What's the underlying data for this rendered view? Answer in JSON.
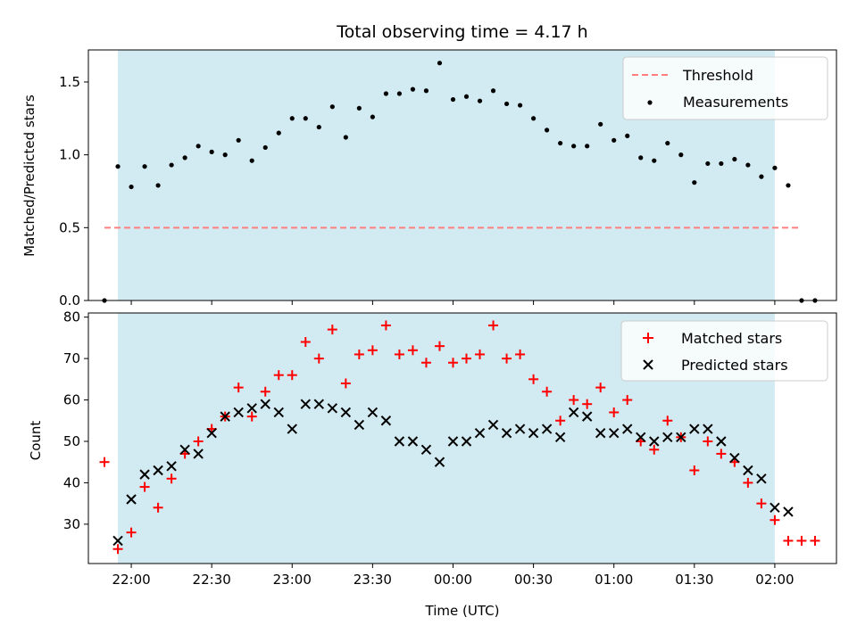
{
  "chart_data": [
    {
      "type": "scatter",
      "title": "Total observing time = 4.17 h",
      "ylabel": "Matched/Predicted stars",
      "xlabel": "",
      "ylim": [
        0,
        1.72
      ],
      "yticks": [
        "0.0",
        "0.5",
        "1.0",
        "1.5"
      ],
      "observing_window": [
        "21:55",
        "02:00"
      ],
      "legend_position": "top-right",
      "threshold": {
        "name": "Threshold",
        "value": 0.5,
        "x_range": [
          "21:50",
          "02:10"
        ],
        "color": "#ff7f7f"
      },
      "series": [
        {
          "name": "Measurements",
          "color": "#000000",
          "points": [
            [
              "21:50",
              0.0
            ],
            [
              "21:55",
              0.92
            ],
            [
              "22:00",
              0.78
            ],
            [
              "22:05",
              0.92
            ],
            [
              "22:10",
              0.79
            ],
            [
              "22:15",
              0.93
            ],
            [
              "22:20",
              0.98
            ],
            [
              "22:25",
              1.06
            ],
            [
              "22:30",
              1.02
            ],
            [
              "22:35",
              1.0
            ],
            [
              "22:40",
              1.1
            ],
            [
              "22:45",
              0.96
            ],
            [
              "22:50",
              1.05
            ],
            [
              "22:55",
              1.15
            ],
            [
              "23:00",
              1.25
            ],
            [
              "23:05",
              1.25
            ],
            [
              "23:10",
              1.19
            ],
            [
              "23:15",
              1.33
            ],
            [
              "23:20",
              1.12
            ],
            [
              "23:25",
              1.32
            ],
            [
              "23:30",
              1.26
            ],
            [
              "23:35",
              1.42
            ],
            [
              "23:40",
              1.42
            ],
            [
              "23:45",
              1.45
            ],
            [
              "23:50",
              1.44
            ],
            [
              "23:55",
              1.63
            ],
            [
              "00:00",
              1.38
            ],
            [
              "00:05",
              1.4
            ],
            [
              "00:10",
              1.37
            ],
            [
              "00:15",
              1.44
            ],
            [
              "00:20",
              1.35
            ],
            [
              "00:25",
              1.34
            ],
            [
              "00:30",
              1.25
            ],
            [
              "00:35",
              1.17
            ],
            [
              "00:40",
              1.08
            ],
            [
              "00:45",
              1.06
            ],
            [
              "00:50",
              1.06
            ],
            [
              "00:55",
              1.21
            ],
            [
              "01:00",
              1.1
            ],
            [
              "01:05",
              1.13
            ],
            [
              "01:10",
              0.98
            ],
            [
              "01:15",
              0.96
            ],
            [
              "01:20",
              1.08
            ],
            [
              "01:25",
              1.0
            ],
            [
              "01:30",
              0.81
            ],
            [
              "01:35",
              0.94
            ],
            [
              "01:40",
              0.94
            ],
            [
              "01:45",
              0.97
            ],
            [
              "01:50",
              0.93
            ],
            [
              "01:55",
              0.85
            ],
            [
              "02:00",
              0.91
            ],
            [
              "02:05",
              0.79
            ],
            [
              "02:10",
              0.0
            ],
            [
              "02:15",
              0.0
            ]
          ]
        }
      ]
    },
    {
      "type": "scatter",
      "title": "",
      "ylabel": "Count",
      "xlabel": "Time (UTC)",
      "ylim": [
        20.5,
        81
      ],
      "yticks": [
        "30",
        "40",
        "50",
        "60",
        "70",
        "80"
      ],
      "xticks": [
        "22:00",
        "22:30",
        "23:00",
        "23:30",
        "00:00",
        "00:30",
        "01:00",
        "01:30",
        "02:00"
      ],
      "observing_window": [
        "21:55",
        "02:00"
      ],
      "legend_position": "top-right",
      "series": [
        {
          "name": "Matched stars",
          "marker": "plus",
          "color": "#ff0000",
          "points": [
            [
              "21:50",
              45
            ],
            [
              "21:55",
              24
            ],
            [
              "22:00",
              28
            ],
            [
              "22:05",
              39
            ],
            [
              "22:10",
              34
            ],
            [
              "22:15",
              41
            ],
            [
              "22:20",
              47
            ],
            [
              "22:25",
              50
            ],
            [
              "22:30",
              53
            ],
            [
              "22:35",
              56
            ],
            [
              "22:40",
              63
            ],
            [
              "22:45",
              56
            ],
            [
              "22:50",
              62
            ],
            [
              "22:55",
              66
            ],
            [
              "23:00",
              66
            ],
            [
              "23:05",
              74
            ],
            [
              "23:10",
              70
            ],
            [
              "23:15",
              77
            ],
            [
              "23:20",
              64
            ],
            [
              "23:25",
              71
            ],
            [
              "23:30",
              72
            ],
            [
              "23:35",
              78
            ],
            [
              "23:40",
              71
            ],
            [
              "23:45",
              72
            ],
            [
              "23:50",
              69
            ],
            [
              "23:55",
              73
            ],
            [
              "00:00",
              69
            ],
            [
              "00:05",
              70
            ],
            [
              "00:10",
              71
            ],
            [
              "00:15",
              78
            ],
            [
              "00:20",
              70
            ],
            [
              "00:25",
              71
            ],
            [
              "00:30",
              65
            ],
            [
              "00:35",
              62
            ],
            [
              "00:40",
              55
            ],
            [
              "00:45",
              60
            ],
            [
              "00:50",
              59
            ],
            [
              "00:55",
              63
            ],
            [
              "01:00",
              57
            ],
            [
              "01:05",
              60
            ],
            [
              "01:10",
              50
            ],
            [
              "01:15",
              48
            ],
            [
              "01:20",
              55
            ],
            [
              "01:25",
              51
            ],
            [
              "01:30",
              43
            ],
            [
              "01:35",
              50
            ],
            [
              "01:40",
              47
            ],
            [
              "01:45",
              45
            ],
            [
              "01:50",
              40
            ],
            [
              "01:55",
              35
            ],
            [
              "02:00",
              31
            ],
            [
              "02:05",
              26
            ],
            [
              "02:10",
              26
            ],
            [
              "02:15",
              26
            ]
          ]
        },
        {
          "name": "Predicted stars",
          "marker": "x",
          "color": "#000000",
          "points": [
            [
              "21:55",
              26
            ],
            [
              "22:00",
              36
            ],
            [
              "22:05",
              42
            ],
            [
              "22:10",
              43
            ],
            [
              "22:15",
              44
            ],
            [
              "22:20",
              48
            ],
            [
              "22:25",
              47
            ],
            [
              "22:30",
              52
            ],
            [
              "22:35",
              56
            ],
            [
              "22:40",
              57
            ],
            [
              "22:45",
              58
            ],
            [
              "22:50",
              59
            ],
            [
              "22:55",
              57
            ],
            [
              "23:00",
              53
            ],
            [
              "23:05",
              59
            ],
            [
              "23:10",
              59
            ],
            [
              "23:15",
              58
            ],
            [
              "23:20",
              57
            ],
            [
              "23:25",
              54
            ],
            [
              "23:30",
              57
            ],
            [
              "23:35",
              55
            ],
            [
              "23:40",
              50
            ],
            [
              "23:45",
              50
            ],
            [
              "23:50",
              48
            ],
            [
              "23:55",
              45
            ],
            [
              "00:00",
              50
            ],
            [
              "00:05",
              50
            ],
            [
              "00:10",
              52
            ],
            [
              "00:15",
              54
            ],
            [
              "00:20",
              52
            ],
            [
              "00:25",
              53
            ],
            [
              "00:30",
              52
            ],
            [
              "00:35",
              53
            ],
            [
              "00:40",
              51
            ],
            [
              "00:45",
              57
            ],
            [
              "00:50",
              56
            ],
            [
              "00:55",
              52
            ],
            [
              "01:00",
              52
            ],
            [
              "01:05",
              53
            ],
            [
              "01:10",
              51
            ],
            [
              "01:15",
              50
            ],
            [
              "01:20",
              51
            ],
            [
              "01:25",
              51
            ],
            [
              "01:30",
              53
            ],
            [
              "01:35",
              53
            ],
            [
              "01:40",
              50
            ],
            [
              "01:45",
              46
            ],
            [
              "01:50",
              43
            ],
            [
              "01:55",
              41
            ],
            [
              "02:00",
              34
            ],
            [
              "02:05",
              33
            ]
          ]
        }
      ]
    }
  ],
  "colors": {
    "window_fill": "#add8e6"
  }
}
